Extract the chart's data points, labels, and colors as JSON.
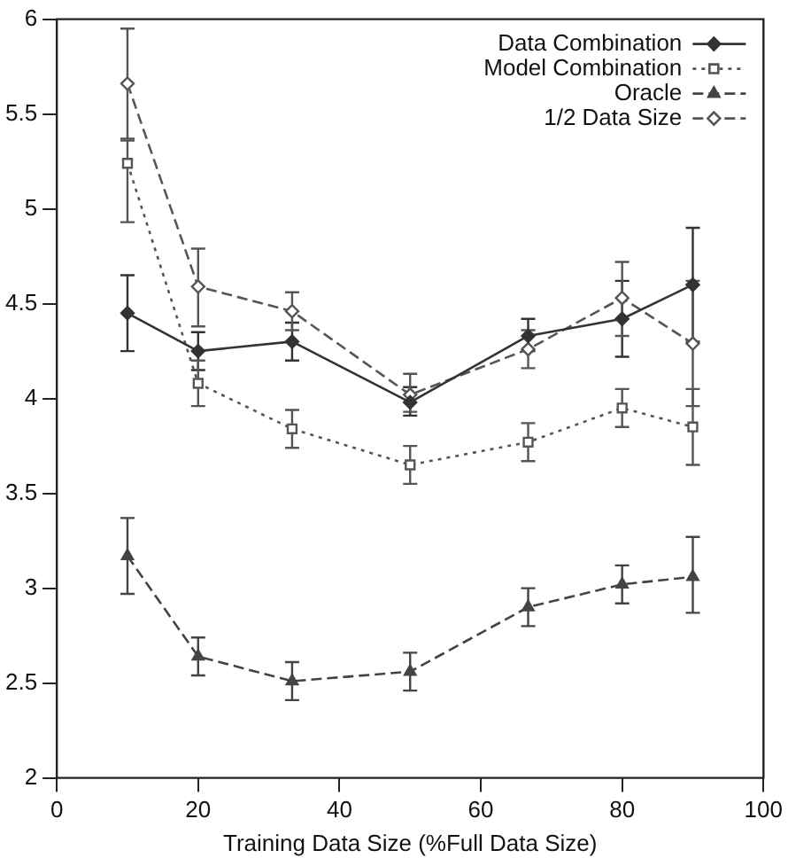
{
  "chart_data": {
    "type": "line",
    "xlabel": "Training Data Size (%Full Data Size)",
    "xlim": [
      0,
      100
    ],
    "xticks": [
      0,
      20,
      40,
      60,
      80,
      100
    ],
    "ylim": [
      2,
      6
    ],
    "yticks": [
      2,
      2.5,
      3,
      3.5,
      4,
      4.5,
      5,
      5.5,
      6
    ],
    "grid": false,
    "legend": "top right",
    "series": [
      {
        "name": "Data Combination",
        "color": "#333333",
        "marker": "diamond",
        "line_style": "solid",
        "x": [
          10,
          20,
          33.3,
          50,
          66.7,
          80,
          90
        ],
        "values": [
          4.45,
          4.25,
          4.3,
          3.98,
          4.33,
          4.42,
          4.6
        ],
        "errors": [
          [
            4.25,
            4.65
          ],
          [
            4.15,
            4.35
          ],
          [
            4.2,
            4.4
          ],
          [
            3.91,
            4.06
          ],
          [
            4.25,
            4.42
          ],
          [
            4.22,
            4.62
          ],
          [
            4.3,
            4.9
          ]
        ]
      },
      {
        "name": "Model Combination",
        "color": "#555555",
        "marker": "square",
        "line_style": "dotted",
        "x": [
          10,
          20,
          33.3,
          50,
          66.7,
          80,
          90
        ],
        "values": [
          5.24,
          4.08,
          3.84,
          3.65,
          3.77,
          3.95,
          3.85
        ],
        "errors": [
          [
            4.93,
            5.36
          ],
          [
            3.96,
            4.2
          ],
          [
            3.74,
            3.94
          ],
          [
            3.55,
            3.75
          ],
          [
            3.67,
            3.87
          ],
          [
            3.85,
            4.05
          ],
          [
            3.65,
            4.05
          ]
        ]
      },
      {
        "name": "Oracle",
        "color": "#444444",
        "marker": "triangle",
        "line_style": "dashed",
        "x": [
          10,
          20,
          33.3,
          50,
          66.7,
          80,
          90
        ],
        "values": [
          3.17,
          2.64,
          2.51,
          2.56,
          2.9,
          3.02,
          3.06
        ],
        "errors": [
          [
            2.97,
            3.37
          ],
          [
            2.54,
            2.74
          ],
          [
            2.41,
            2.61
          ],
          [
            2.46,
            2.66
          ],
          [
            2.8,
            3.0
          ],
          [
            2.92,
            3.12
          ],
          [
            2.87,
            3.27
          ]
        ]
      },
      {
        "name": "1/2 Data Size",
        "color": "#555555",
        "marker": "diamond",
        "line_style": "dashed",
        "x": [
          10,
          20,
          33.3,
          50,
          66.7,
          80,
          90
        ],
        "values": [
          5.66,
          4.59,
          4.46,
          4.02,
          4.26,
          4.53,
          4.29
        ],
        "errors": [
          [
            5.37,
            5.95
          ],
          [
            4.38,
            4.79
          ],
          [
            4.36,
            4.56
          ],
          [
            3.93,
            4.13
          ],
          [
            4.16,
            4.36
          ],
          [
            4.33,
            4.72
          ],
          [
            3.96,
            4.62
          ]
        ]
      }
    ]
  }
}
